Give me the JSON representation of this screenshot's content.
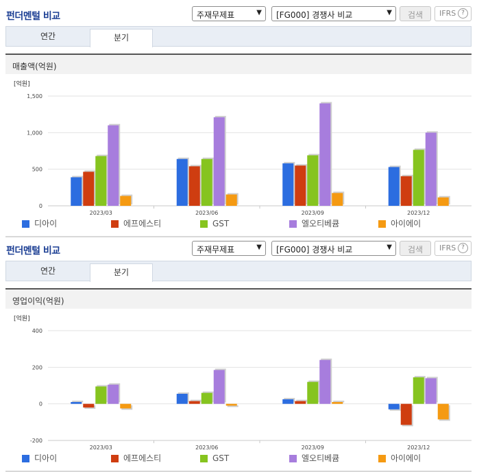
{
  "panels": [
    {
      "title": "펀더멘털 비교",
      "select1": "주재무제표",
      "select2": "[FG000] 경쟁사 비교",
      "search_label": "검색",
      "ifrs_label": "IFRS",
      "tabs": [
        "연간",
        "분기"
      ],
      "active_tab": 1,
      "chart_title": "매출액(억원)"
    },
    {
      "title": "펀더멘털 비교",
      "select1": "주재무제표",
      "select2": "[FG000] 경쟁사 비교",
      "search_label": "검색",
      "ifrs_label": "IFRS",
      "tabs": [
        "연간",
        "분기"
      ],
      "active_tab": 1,
      "chart_title": "영업이익(억원)"
    }
  ],
  "series_colors": [
    "#2c6de0",
    "#cf3d10",
    "#86c41f",
    "#a77ddd",
    "#f59a12"
  ],
  "chart_data": [
    {
      "type": "bar",
      "title": "매출액(억원)",
      "unit_label": "[억원]",
      "categories": [
        "2023/03",
        "2023/06",
        "2023/09",
        "2023/12"
      ],
      "ylim": [
        0,
        1500
      ],
      "yticks": [
        0,
        500,
        1000,
        1500
      ],
      "ytick_labels": [
        "0",
        "500",
        "1,000",
        "1,500"
      ],
      "legend_placement": "bottom",
      "series": [
        {
          "name": "디아이",
          "values": [
            390,
            640,
            580,
            530
          ]
        },
        {
          "name": "에프에스티",
          "values": [
            465,
            540,
            550,
            405
          ]
        },
        {
          "name": "GST",
          "values": [
            680,
            640,
            690,
            765
          ]
        },
        {
          "name": "엘오티베큠",
          "values": [
            1100,
            1210,
            1400,
            1000
          ]
        },
        {
          "name": "아이에이",
          "values": [
            135,
            155,
            175,
            115
          ]
        }
      ]
    },
    {
      "type": "bar",
      "title": "영업이익(억원)",
      "unit_label": "[억원]",
      "categories": [
        "2023/03",
        "2023/06",
        "2023/09",
        "2023/12"
      ],
      "ylim": [
        -200,
        400
      ],
      "yticks": [
        -200,
        0,
        200,
        400
      ],
      "ytick_labels": [
        "-200",
        "0",
        "200",
        "400"
      ],
      "legend_placement": "bottom",
      "series": [
        {
          "name": "디아이",
          "values": [
            10,
            55,
            25,
            -30
          ]
        },
        {
          "name": "에프에스티",
          "values": [
            -20,
            15,
            15,
            -115
          ]
        },
        {
          "name": "GST",
          "values": [
            95,
            60,
            120,
            145
          ]
        },
        {
          "name": "엘오티베큠",
          "values": [
            105,
            185,
            240,
            140
          ]
        },
        {
          "name": "아이에이",
          "values": [
            -25,
            -10,
            10,
            -85
          ]
        }
      ]
    }
  ]
}
